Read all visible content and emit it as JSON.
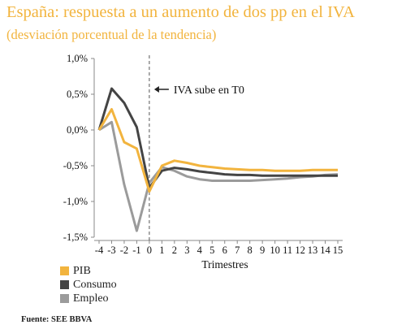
{
  "title": "España: respuesta a un aumento de dos pp en el IVA",
  "subtitle": "(desviación porcentual de la tendencia)",
  "source": "Fuente: SEE BBVA",
  "colors": {
    "title": "#f2b43e",
    "PIB": "#f2b43e",
    "Consumo": "#444444",
    "Empleo": "#9b9b9b",
    "axis": "#888888"
  },
  "chart_data": {
    "type": "line",
    "xlabel": "Trimestres",
    "ylabel": "",
    "x": [
      -4,
      -3,
      -2,
      -1,
      0,
      1,
      2,
      3,
      4,
      5,
      6,
      7,
      8,
      9,
      10,
      11,
      12,
      13,
      14,
      15
    ],
    "ylim": [
      -1.5,
      1.0
    ],
    "yticks": [
      1.0,
      0.5,
      0.0,
      -0.5,
      -1.0,
      -1.5
    ],
    "ytick_labels": [
      "1,0%",
      "0,5%",
      "0,0%",
      "-0,5%",
      "-1,0%",
      "-1,5%"
    ],
    "grid": false,
    "legend_position": "bottom-left",
    "annotation": {
      "text": "IVA sube en T0",
      "x": 0
    },
    "series": [
      {
        "name": "PIB",
        "values": [
          0.0,
          0.29,
          -0.17,
          -0.26,
          -0.86,
          -0.5,
          -0.43,
          -0.46,
          -0.5,
          -0.52,
          -0.54,
          -0.55,
          -0.56,
          -0.56,
          -0.57,
          -0.57,
          -0.57,
          -0.56,
          -0.56,
          -0.56
        ]
      },
      {
        "name": "Consumo",
        "values": [
          0.0,
          0.58,
          0.38,
          0.04,
          -0.81,
          -0.57,
          -0.53,
          -0.55,
          -0.58,
          -0.6,
          -0.62,
          -0.63,
          -0.63,
          -0.64,
          -0.64,
          -0.64,
          -0.64,
          -0.64,
          -0.64,
          -0.64
        ]
      },
      {
        "name": "Empleo",
        "values": [
          0.0,
          0.11,
          -0.76,
          -1.41,
          -0.74,
          -0.52,
          -0.57,
          -0.65,
          -0.69,
          -0.71,
          -0.71,
          -0.71,
          -0.71,
          -0.7,
          -0.69,
          -0.68,
          -0.66,
          -0.65,
          -0.63,
          -0.62
        ]
      }
    ]
  }
}
